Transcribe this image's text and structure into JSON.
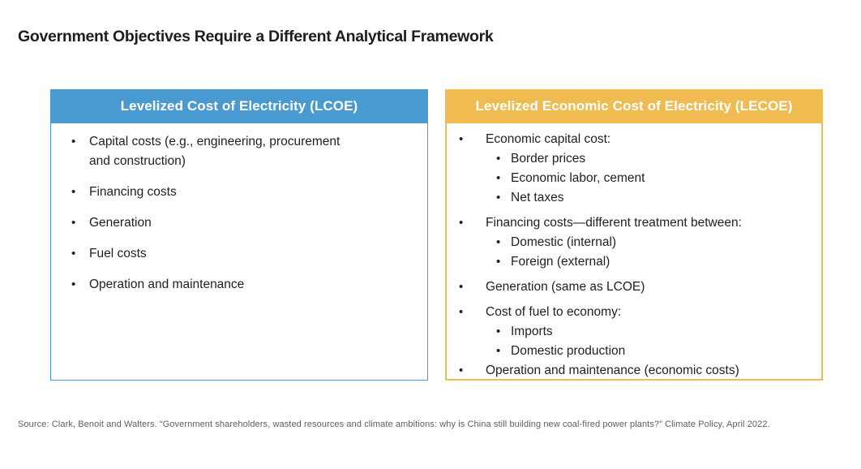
{
  "title": "Government Objectives Require a Different Analytical Framework",
  "colors": {
    "lcoe_header_bg": "#4a9ad2",
    "lecoe_header_bg": "#f0bb50",
    "header_text": "#ffffff",
    "body_text": "#1f1f1f",
    "source_text": "#5f5f5f"
  },
  "lcoe_box": {
    "header": "Levelized Cost of Electricity (LCOE)",
    "items": [
      {
        "level": 1,
        "text": "Capital costs (e.g., engineering, procurement\nand construction)"
      },
      {
        "level": 1,
        "text": "Financing costs"
      },
      {
        "level": 1,
        "text": "Generation"
      },
      {
        "level": 1,
        "text": "Fuel costs"
      },
      {
        "level": 1,
        "text": "Operation and maintenance"
      }
    ]
  },
  "lecoe_box": {
    "header": "Levelized Economic Cost of Electricity (LECOE)",
    "items": [
      {
        "level": 1,
        "text": "Economic capital cost:"
      },
      {
        "level": 2,
        "text": "Border prices"
      },
      {
        "level": 2,
        "text": "Economic labor, cement"
      },
      {
        "level": 2,
        "text": "Net taxes"
      },
      {
        "level": 1,
        "gap": true,
        "text": "Financing costs—different treatment between:"
      },
      {
        "level": 2,
        "text": "Domestic (internal)"
      },
      {
        "level": 2,
        "text": "Foreign (external)"
      },
      {
        "level": 1,
        "gap": true,
        "text": "Generation (same as LCOE)"
      },
      {
        "level": 1,
        "gap": true,
        "text": "Cost of fuel to economy:"
      },
      {
        "level": 2,
        "text": "Imports"
      },
      {
        "level": 2,
        "text": "Domestic production"
      },
      {
        "level": 1,
        "text": "Operation and maintenance (economic costs)"
      }
    ]
  },
  "source": "Source: Clark, Benoit and Walters. “Government shareholders, wasted resources and climate ambitions: why is China still building new coal-fired power plants?” Climate Policy, April 2022."
}
